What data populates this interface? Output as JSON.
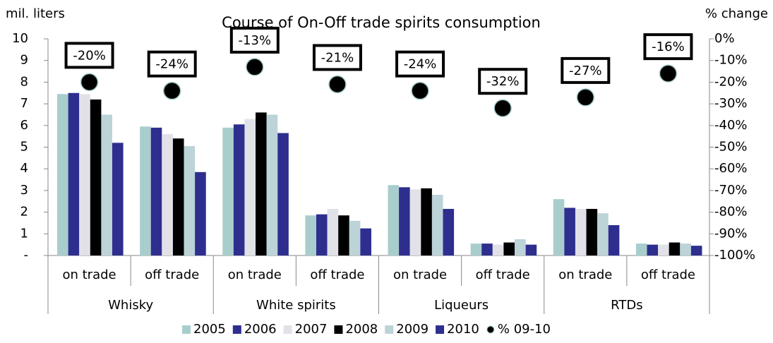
{
  "chart_data": {
    "type": "bar",
    "title": "Course of On-Off trade spirits consumption",
    "ylabel": "mil. liters",
    "y2label": "% change",
    "categories": [
      "on trade",
      "off trade",
      "on trade",
      "off trade",
      "on trade",
      "off trade",
      "on trade",
      "off trade"
    ],
    "category_groups": [
      "Whisky",
      "White spirits",
      "Liqueurs",
      "RTDs"
    ],
    "ylim": [
      0,
      10
    ],
    "yticks": [
      {
        "value": 0,
        "label": "-"
      },
      1,
      2,
      3,
      4,
      5,
      6,
      7,
      8,
      9,
      10
    ],
    "y2lim": [
      -100,
      0
    ],
    "y2ticks": [
      {
        "value": 0,
        "label": "0%"
      },
      {
        "value": -10,
        "label": "-10%"
      },
      {
        "value": -20,
        "label": "-20%"
      },
      {
        "value": -30,
        "label": "-30%"
      },
      {
        "value": -40,
        "label": "-40%"
      },
      {
        "value": -50,
        "label": "-50%"
      },
      {
        "value": -60,
        "label": "-60%"
      },
      {
        "value": -70,
        "label": "-70%"
      },
      {
        "value": -80,
        "label": "-80%"
      },
      {
        "value": -90,
        "label": "-90%"
      },
      {
        "value": -100,
        "label": "-100%"
      }
    ],
    "series": [
      {
        "name": "2005",
        "color": "#a9cdcd",
        "values": [
          7.45,
          5.95,
          5.9,
          1.85,
          3.25,
          0.55,
          2.6,
          0.55
        ]
      },
      {
        "name": "2006",
        "color": "#2e2e8f",
        "values": [
          7.5,
          5.9,
          6.05,
          1.9,
          3.15,
          0.55,
          2.2,
          0.5
        ]
      },
      {
        "name": "2007",
        "color": "#e1e1e8",
        "values": [
          7.45,
          5.6,
          6.3,
          2.15,
          3.05,
          0.5,
          2.15,
          0.5
        ]
      },
      {
        "name": "2008",
        "color": "#000000",
        "values": [
          7.2,
          5.4,
          6.6,
          1.85,
          3.1,
          0.6,
          2.15,
          0.6
        ]
      },
      {
        "name": "2009",
        "color": "#bcd3d8",
        "values": [
          6.5,
          5.05,
          6.5,
          1.6,
          2.8,
          0.75,
          1.95,
          0.55
        ]
      },
      {
        "name": "2010",
        "color": "#2e2e8f",
        "values": [
          5.2,
          3.85,
          5.65,
          1.25,
          2.15,
          0.5,
          1.4,
          0.45
        ]
      },
      {
        "name": "% 09-10",
        "color": "#000000",
        "axis": "y2",
        "edge_color": "#a9cdcd",
        "values": [
          -20,
          -24,
          -13,
          -21,
          -24,
          -32,
          -27,
          -16
        ],
        "value_labels": [
          "-20%",
          "-24%",
          "-13%",
          "-21%",
          "-24%",
          "-32%",
          "-27%",
          "-16%"
        ]
      }
    ],
    "legend": "bottom"
  }
}
